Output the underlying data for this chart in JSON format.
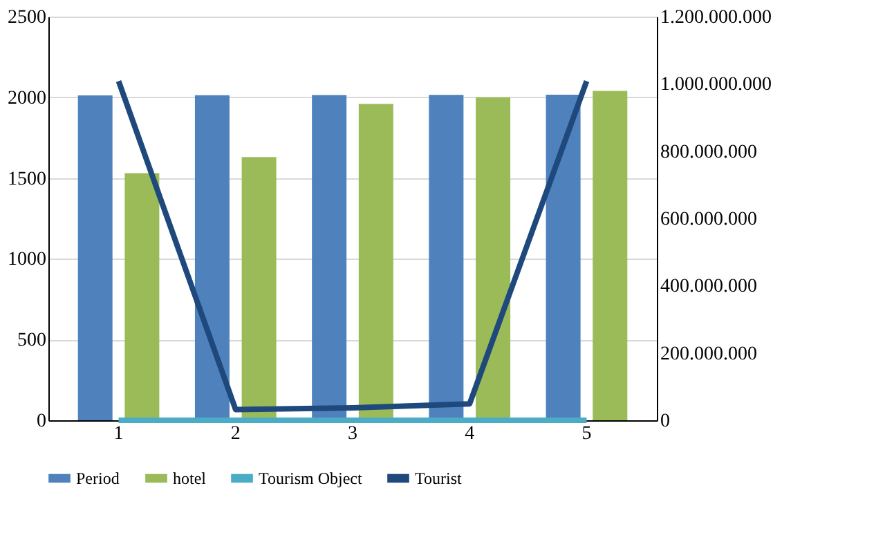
{
  "chart_data": {
    "type": "bar",
    "categories": [
      "1",
      "2",
      "3",
      "4",
      "5"
    ],
    "series": [
      {
        "name": "Period",
        "color": "#4f81bd",
        "values": [
          2012,
          2013,
          2014,
          2015,
          2016
        ]
      },
      {
        "name": "hotel",
        "color": "#9bbb59",
        "values": [
          1530,
          1630,
          1960,
          2000,
          2040
        ]
      },
      {
        "name": "Tourism Object",
        "type": "line",
        "color": "#4bacc6",
        "values": [
          0,
          0,
          0,
          0,
          0
        ]
      },
      {
        "name": "Tourist",
        "type": "line",
        "axis": "y2",
        "color": "#1f497d",
        "values": [
          1008000000,
          32000000,
          37000000,
          49000000,
          1008000000
        ]
      }
    ],
    "ylim": [
      0,
      2500
    ],
    "yticks": [
      0,
      500,
      1000,
      1500,
      2000,
      2500
    ],
    "y2lim": [
      0,
      1200000000
    ],
    "y2ticks": [
      {
        "value": 0,
        "label": "0"
      },
      {
        "value": 200000000,
        "label": "200.000.000"
      },
      {
        "value": 400000000,
        "label": "400.000.000"
      },
      {
        "value": 600000000,
        "label": "600.000.000"
      },
      {
        "value": 800000000,
        "label": "800.000.000"
      },
      {
        "value": 1000000000,
        "label": "1.000.000.000"
      },
      {
        "value": 1200000000,
        "label": "1.200.000.000"
      }
    ],
    "grid": "y",
    "legend": "bottom"
  }
}
